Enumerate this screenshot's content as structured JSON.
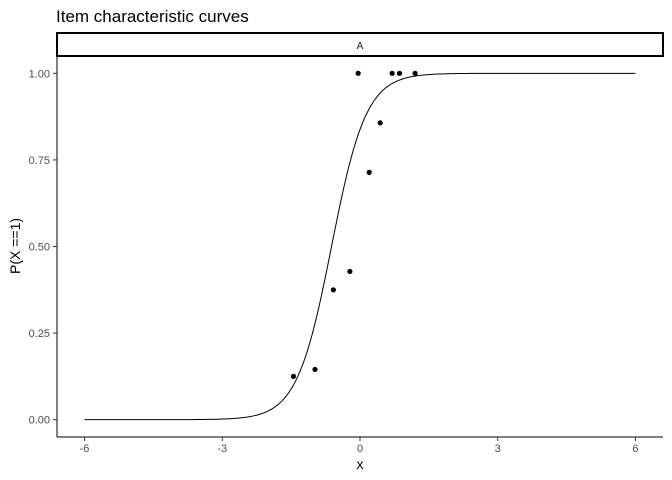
{
  "chart_data": {
    "type": "scatter",
    "title": "Item characteristic curves",
    "facet_label": "A",
    "xlabel": "x",
    "ylabel": "P(X ==1)",
    "xlim": [
      -6.6,
      6.6
    ],
    "ylim": [
      -0.05,
      1.05
    ],
    "x_ticks": [
      -6,
      -3,
      0,
      3,
      6
    ],
    "x_tick_labels": [
      "-6",
      "-3",
      "0",
      "3",
      "6"
    ],
    "y_ticks": [
      0,
      0.25,
      0.5,
      0.75,
      1
    ],
    "y_tick_labels": [
      "0.00",
      "0.25",
      "0.50",
      "0.75",
      "1.00"
    ],
    "grid": false,
    "curve": {
      "x_range": [
        -6,
        6
      ],
      "shape": "logistic",
      "location": -0.62,
      "slope": 2.65
    },
    "points": [
      {
        "x": -1.45,
        "y": 0.125
      },
      {
        "x": -0.98,
        "y": 0.145
      },
      {
        "x": -0.58,
        "y": 0.375
      },
      {
        "x": -0.22,
        "y": 0.428
      },
      {
        "x": -0.04,
        "y": 1.0
      },
      {
        "x": 0.2,
        "y": 0.714
      },
      {
        "x": 0.44,
        "y": 0.857
      },
      {
        "x": 0.7,
        "y": 1.0
      },
      {
        "x": 0.86,
        "y": 1.0
      },
      {
        "x": 1.2,
        "y": 1.0
      }
    ]
  }
}
